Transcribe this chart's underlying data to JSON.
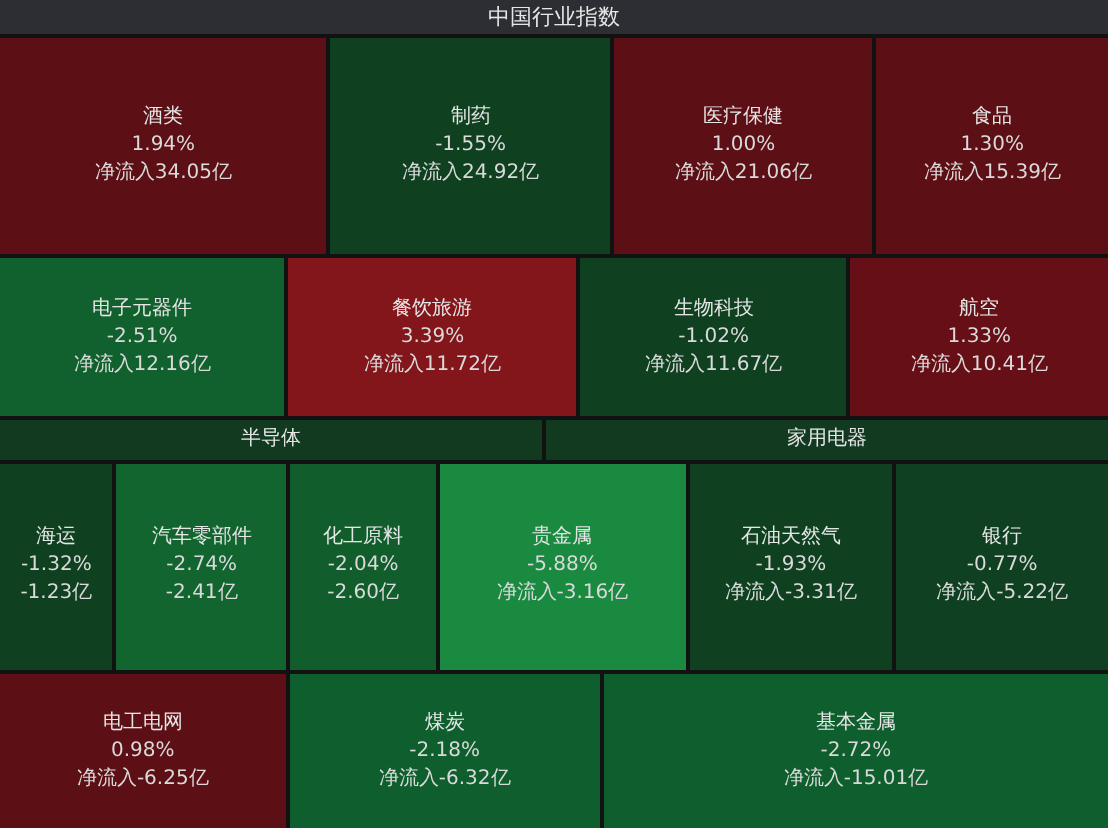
{
  "chart_data": {
    "type": "other",
    "title": "中国行业指数",
    "categories": [
      "酒类",
      "制药",
      "医疗保健",
      "食品",
      "电子元器件",
      "餐饮旅游",
      "生物科技",
      "航空",
      "半导体",
      "家用电器",
      "海运",
      "汽车零部件",
      "化工原料",
      "贵金属",
      "石油天然气",
      "银行",
      "电工电网",
      "煤炭",
      "基本金属"
    ],
    "series": [
      {
        "colors": [
          "#5c0f14",
          "#0f4121",
          "#5c0f14",
          "#5c0f14",
          "#10612e",
          "#82161b",
          "#0f4121",
          "#660f16",
          "#113a21",
          "#113a21",
          "#0f4121",
          "#13652f",
          "#115d2c",
          "#1a8a40",
          "#0f4121",
          "#0f4021",
          "#5c0f14",
          "#0f5e2d",
          "#0f5e2d"
        ],
        "values": [
          1.94,
          -1.55,
          1.0,
          1.3,
          -2.51,
          3.39,
          -1.02,
          1.33,
          null,
          null,
          -1.32,
          -2.74,
          -2.04,
          -5.88,
          -1.93,
          -0.77,
          0.98,
          -2.18,
          -2.72
        ],
        "value_labels": [
          "1.94%",
          "-1.55%",
          "1.00%",
          "1.30%",
          "-2.51%",
          "3.39%",
          "-1.02%",
          "1.33%",
          null,
          null,
          "-1.32%",
          "-2.74%",
          "-2.04%",
          "-5.88%",
          "-1.93%",
          "-0.77%",
          "0.98%",
          "-2.18%",
          "-2.72%"
        ]
      },
      {
        "values": [
          34.05,
          24.92,
          21.06,
          15.39,
          12.16,
          11.72,
          11.67,
          10.41,
          null,
          null,
          -1.23,
          -2.41,
          -2.6,
          -3.16,
          -3.31,
          -5.22,
          -6.25,
          -6.32,
          -15.01
        ],
        "value_labels": [
          "净流入34.05亿",
          "净流入24.92亿",
          "净流入21.06亿",
          "净流入15.39亿",
          "净流入12.16亿",
          "净流入11.72亿",
          "净流入11.67亿",
          "净流入10.41亿",
          null,
          null,
          "-1.23亿",
          "-2.41亿",
          "-2.60亿",
          "净流入-3.16亿",
          "净流入-3.31亿",
          "净流入-5.22亿",
          "净流入-6.25亿",
          "净流入-6.32亿",
          "净流入-15.01亿"
        ]
      }
    ]
  }
}
